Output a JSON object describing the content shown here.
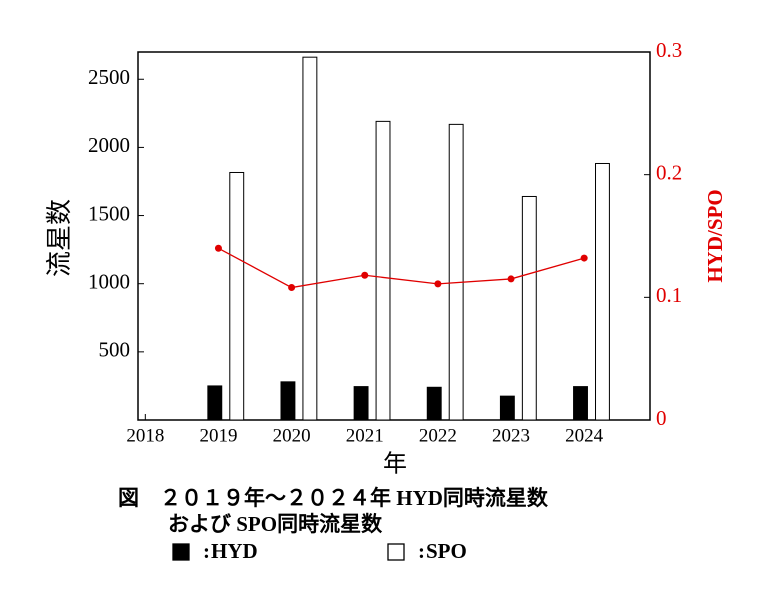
{
  "chart_data": {
    "type": "bar",
    "x": [
      2019,
      2020,
      2021,
      2022,
      2023,
      2024
    ],
    "series": [
      {
        "name": "HYD",
        "type": "bar",
        "color": "#000000",
        "values": [
          250,
          280,
          245,
          240,
          175,
          245
        ]
      },
      {
        "name": "SPO",
        "type": "bar",
        "color": "#ffffff",
        "values": [
          1816,
          2662,
          2191,
          2169,
          1640,
          1882
        ]
      },
      {
        "name": "HYD/SPO",
        "type": "line",
        "axis": "y2",
        "color": "#e00000",
        "values": [
          0.14,
          0.108,
          0.118,
          0.111,
          0.115,
          0.132
        ]
      }
    ],
    "xlim": [
      2017.9,
      2024.9
    ],
    "xticks": [
      2018,
      2019,
      2020,
      2021,
      2022,
      2023,
      2024
    ],
    "ylim": [
      0,
      2700
    ],
    "yticks": [
      500,
      1000,
      1500,
      2000,
      2500
    ],
    "y2lim": [
      0,
      0.3
    ],
    "y2ticks": [
      0,
      0.1,
      0.2,
      0.3
    ],
    "xlabel": "年",
    "ylabel": "流星数",
    "y2label": "HYD/SPO",
    "caption": [
      "図　２０１９年～２０２４年 HYD同時流星数",
      "および SPO同時流星数"
    ],
    "legend_separator": ":"
  }
}
